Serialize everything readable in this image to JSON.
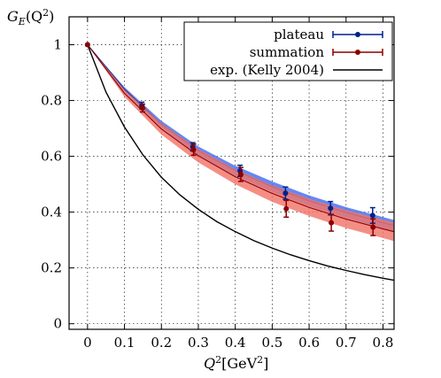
{
  "chart_data": {
    "type": "line",
    "title": "",
    "ylabel_parts": {
      "main": "G",
      "sub": "E",
      "open": "(Q",
      "sup": "2",
      "close": ")"
    },
    "xlabel_parts": {
      "main": "Q",
      "sup": "2",
      "unit_open": "[GeV",
      "unit_sup": "2",
      "unit_close": "]"
    },
    "xlim": [
      -0.05,
      0.83
    ],
    "ylim": [
      -0.02,
      1.1
    ],
    "x_ticks": [
      0,
      0.1,
      0.2,
      0.3,
      0.4,
      0.5,
      0.6,
      0.7,
      0.8
    ],
    "x_tick_labels": [
      "0",
      "0.1",
      "0.2",
      "0.3",
      "0.4",
      "0.5",
      "0.6",
      "0.7",
      "0.8"
    ],
    "y_ticks": [
      0,
      0.2,
      0.4,
      0.6,
      0.8,
      1.0
    ],
    "y_tick_labels": [
      "0",
      "0.2",
      "0.4",
      "0.6",
      "0.8",
      "1"
    ],
    "grid": true,
    "legend_position": "top-right",
    "colors": {
      "plateau": "#00208a",
      "plateau_band": "#4a72f0",
      "summation": "#8b0000",
      "summation_band": "#f2756a",
      "kelly": "#000000"
    },
    "series": [
      {
        "name": "plateau",
        "kind": "points",
        "x": [
          0,
          0.147,
          0.285,
          0.413,
          0.536,
          0.658,
          0.772
        ],
        "y": [
          1.0,
          0.782,
          0.634,
          0.548,
          0.468,
          0.414,
          0.388
        ],
        "yerr": [
          0,
          0.012,
          0.015,
          0.02,
          0.022,
          0.024,
          0.028
        ]
      },
      {
        "name": "summation",
        "kind": "points",
        "x": [
          0,
          0.149,
          0.287,
          0.415,
          0.538,
          0.66,
          0.773
        ],
        "y": [
          1.0,
          0.773,
          0.624,
          0.535,
          0.412,
          0.362,
          0.346
        ],
        "yerr": [
          0,
          0.014,
          0.02,
          0.025,
          0.03,
          0.03,
          0.03
        ]
      },
      {
        "name": "plateau-fit",
        "kind": "band",
        "x": [
          0,
          0.1,
          0.2,
          0.3,
          0.4,
          0.5,
          0.6,
          0.7,
          0.8,
          0.83
        ],
        "y": [
          1.0,
          0.84,
          0.715,
          0.62,
          0.549,
          0.491,
          0.441,
          0.399,
          0.362,
          0.352
        ],
        "lower": [
          1.0,
          0.832,
          0.703,
          0.604,
          0.531,
          0.472,
          0.422,
          0.379,
          0.342,
          0.331
        ],
        "upper": [
          1.0,
          0.848,
          0.727,
          0.635,
          0.566,
          0.51,
          0.46,
          0.418,
          0.382,
          0.372
        ]
      },
      {
        "name": "summation-fit",
        "kind": "band",
        "x": [
          0,
          0.1,
          0.2,
          0.3,
          0.4,
          0.5,
          0.6,
          0.7,
          0.8,
          0.83
        ],
        "y": [
          1.0,
          0.826,
          0.698,
          0.602,
          0.527,
          0.467,
          0.417,
          0.375,
          0.34,
          0.33
        ],
        "lower": [
          1.0,
          0.813,
          0.678,
          0.578,
          0.5,
          0.437,
          0.386,
          0.343,
          0.307,
          0.296
        ],
        "upper": [
          1.0,
          0.839,
          0.718,
          0.626,
          0.554,
          0.496,
          0.448,
          0.407,
          0.373,
          0.363
        ]
      },
      {
        "name": "exp. (Kelly 2004)",
        "kind": "line",
        "x": [
          0,
          0.05,
          0.1,
          0.15,
          0.2,
          0.25,
          0.3,
          0.35,
          0.4,
          0.45,
          0.5,
          0.55,
          0.6,
          0.65,
          0.7,
          0.75,
          0.8,
          0.83
        ],
        "y": [
          1.0,
          0.83,
          0.705,
          0.605,
          0.525,
          0.462,
          0.41,
          0.366,
          0.33,
          0.298,
          0.271,
          0.247,
          0.226,
          0.207,
          0.191,
          0.176,
          0.163,
          0.156
        ]
      }
    ],
    "legend": [
      {
        "label": "plateau",
        "series": "plateau"
      },
      {
        "label": "summation",
        "series": "summation"
      },
      {
        "label": "exp. (Kelly 2004)",
        "series": "exp. (Kelly 2004)"
      }
    ]
  }
}
